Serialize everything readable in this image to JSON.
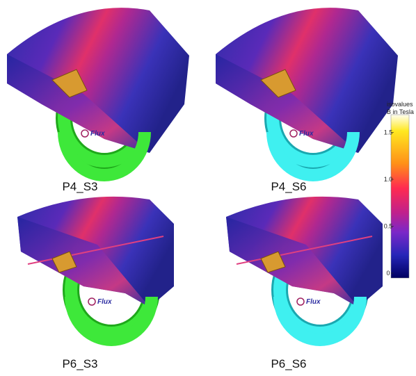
{
  "panels": [
    {
      "label": "P4_S3",
      "logo": "Flux",
      "ring_color": "#3ee83a",
      "ring_edge": "#1fa81b"
    },
    {
      "label": "P4_S6",
      "logo": "Flux",
      "ring_color": "#3ff0f0",
      "ring_edge": "#1aa8b0"
    },
    {
      "label": "P6_S3",
      "logo": "Flux",
      "ring_color": "#3ee83a",
      "ring_edge": "#1fa81b"
    },
    {
      "label": "P6_S6",
      "logo": "Flux",
      "ring_color": "#3ff0f0",
      "ring_edge": "#1aa8b0"
    }
  ],
  "scale": {
    "title": "isovalues",
    "unit": "B in Tesla",
    "ticks": [
      1.5,
      {
        "value": 1,
        "label": "1.0"
      },
      0.5,
      0
    ]
  }
}
